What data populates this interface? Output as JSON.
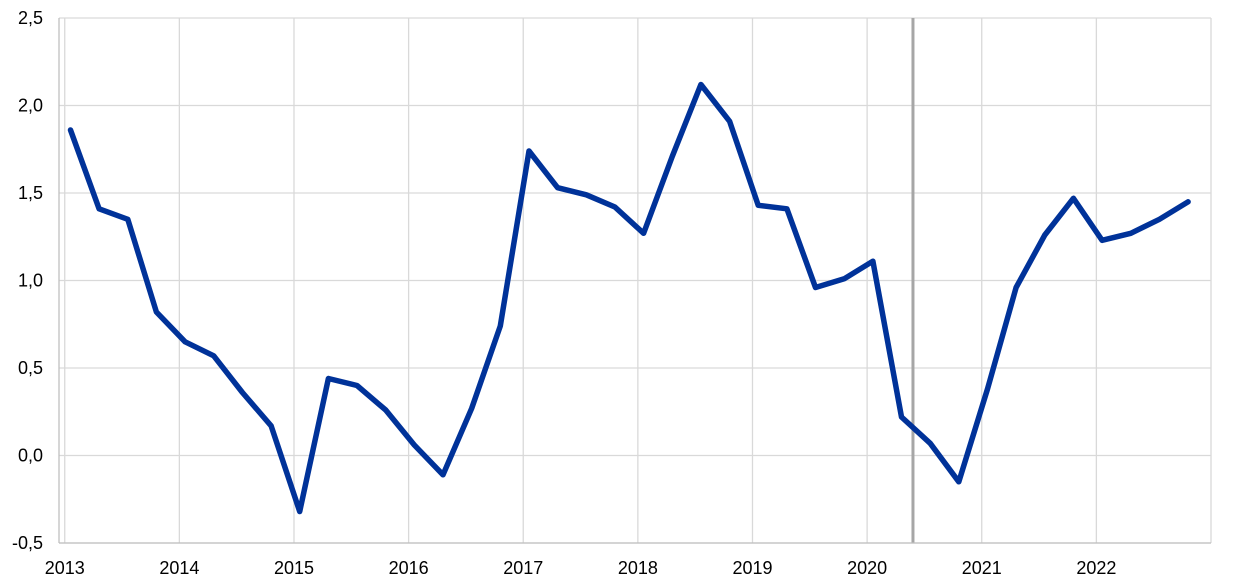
{
  "chart_data": {
    "type": "line",
    "title": "",
    "xlabel": "",
    "ylabel": "",
    "ylim": [
      -0.5,
      2.5
    ],
    "y_ticks": [
      "-0,5",
      "0,0",
      "0,5",
      "1,0",
      "1,5",
      "2,0",
      "2,5"
    ],
    "y_tick_values": [
      -0.5,
      0.0,
      0.5,
      1.0,
      1.5,
      2.0,
      2.5
    ],
    "x_range": [
      2012.95,
      2023.0
    ],
    "x_ticks": [
      "2013",
      "2014",
      "2015",
      "2016",
      "2017",
      "2018",
      "2019",
      "2020",
      "2021",
      "2022"
    ],
    "x_tick_values": [
      2013,
      2014,
      2015,
      2016,
      2017,
      2018,
      2019,
      2020,
      2021,
      2022
    ],
    "grid": true,
    "vertical_marker": {
      "x": 2020.4,
      "color": "#a6a6a6"
    },
    "series": [
      {
        "color": "#003299",
        "x": [
          2013.05,
          2013.3,
          2013.55,
          2013.8,
          2014.05,
          2014.3,
          2014.55,
          2014.8,
          2015.05,
          2015.3,
          2015.55,
          2015.8,
          2016.05,
          2016.3,
          2016.55,
          2016.8,
          2017.05,
          2017.3,
          2017.55,
          2017.8,
          2018.05,
          2018.3,
          2018.55,
          2018.8,
          2019.05,
          2019.3,
          2019.55,
          2019.8,
          2020.05,
          2020.3,
          2020.55,
          2020.8,
          2021.05,
          2021.3,
          2021.55,
          2021.8,
          2022.05,
          2022.3,
          2022.55,
          2022.8
        ],
        "values": [
          1.86,
          1.41,
          1.35,
          0.82,
          0.65,
          0.57,
          0.36,
          0.17,
          -0.32,
          0.44,
          0.4,
          0.26,
          0.06,
          -0.11,
          0.27,
          0.74,
          1.74,
          1.53,
          1.49,
          1.42,
          1.27,
          1.71,
          2.12,
          1.91,
          1.43,
          1.41,
          0.96,
          1.01,
          1.11,
          0.22,
          0.07,
          -0.15,
          0.38,
          0.96,
          1.26,
          1.47,
          1.23,
          1.27,
          1.35,
          1.45
        ]
      }
    ]
  }
}
